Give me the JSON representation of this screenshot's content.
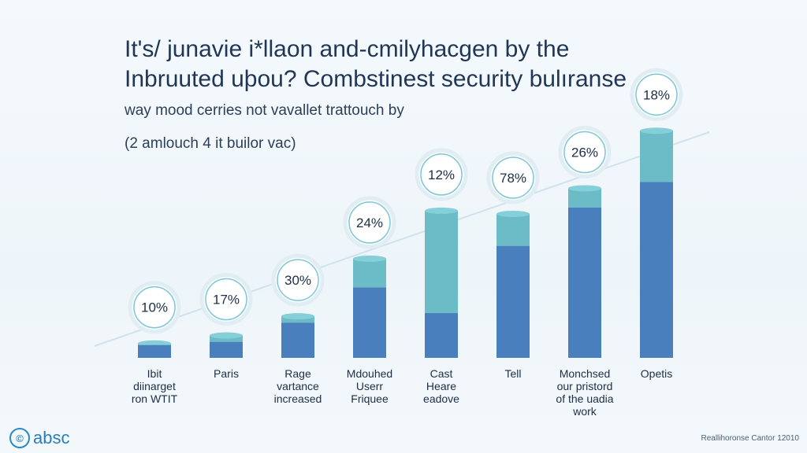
{
  "header": {
    "title_line1": "It's/ junavie i*llaon and-cmilyhacgen by the",
    "title_line2": "Inbruuted uþou? Combstinest security bulıranse",
    "subtitle": "way mood cerries not vavallet trattouch by",
    "subnote": "(2 amlouch 4 it builor vac)"
  },
  "chart_data": {
    "type": "bar",
    "title": "",
    "xlabel": "",
    "ylabel": "",
    "categories": [
      "Ibit\ndiinarget\nron WTIT",
      "Paris",
      "Rage\nvartance\nincreased",
      "Mdouhed\nUserr\nFriquee",
      "Cast\nHeare\neadove",
      "Tell",
      "Monchsed\nour pristord\nof the uadia\nwork",
      "Opetis"
    ],
    "labels": [
      "10%",
      "17%",
      "30%",
      "24%",
      "12%",
      "78%",
      "26%",
      "18%"
    ],
    "series": [
      {
        "values": [
          4,
          5,
          11,
          22,
          14,
          35,
          47,
          55
        ]
      },
      {
        "values": [
          0.5,
          2,
          2,
          9,
          32,
          10,
          6,
          16
        ]
      }
    ],
    "ylim": [
      0,
      75
    ],
    "colors": {
      "dark": "#4a7fbe",
      "light": "#6cbcc8",
      "label_ring": "#7fc6d6"
    }
  },
  "footer": {
    "logo_text": "absc",
    "credit": "Reallihoronse Cantor 12010"
  }
}
